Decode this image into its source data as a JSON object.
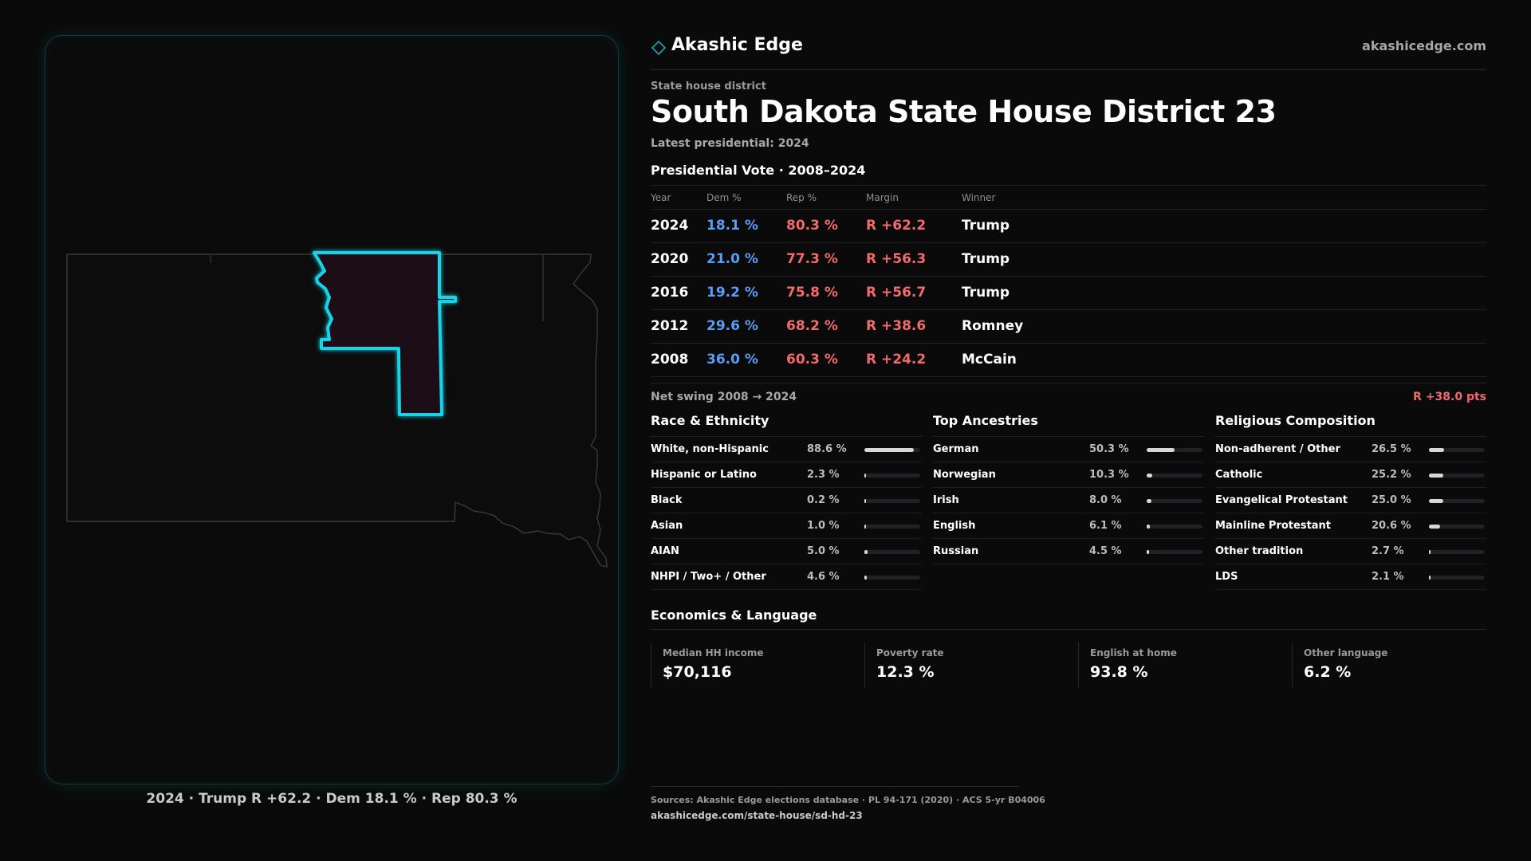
{
  "brand": {
    "name": "Akashic Edge",
    "url": "akashicedge.com"
  },
  "district": {
    "kicker": "State house district",
    "title": "South Dakota State House District 23",
    "subtitle": "Latest presidential: 2024"
  },
  "vote": {
    "heading": "Presidential Vote · 2008–2024",
    "columns": [
      "Year",
      "Dem %",
      "Rep %",
      "Margin",
      "Winner"
    ],
    "rows": [
      {
        "year": "2024",
        "dem": "18.1 %",
        "rep": "80.3 %",
        "margin": "R +62.2",
        "winner": "Trump"
      },
      {
        "year": "2020",
        "dem": "21.0 %",
        "rep": "77.3 %",
        "margin": "R +56.3",
        "winner": "Trump"
      },
      {
        "year": "2016",
        "dem": "19.2 %",
        "rep": "75.8 %",
        "margin": "R +56.7",
        "winner": "Trump"
      },
      {
        "year": "2012",
        "dem": "29.6 %",
        "rep": "68.2 %",
        "margin": "R +38.6",
        "winner": "Romney"
      },
      {
        "year": "2008",
        "dem": "36.0 %",
        "rep": "60.3 %",
        "margin": "R +24.2",
        "winner": "McCain"
      }
    ],
    "swing_label": "Net swing 2008 → 2024",
    "swing_value": "R +38.0 pts"
  },
  "race": {
    "heading": "Race & Ethnicity",
    "rows": [
      {
        "label": "White, non-Hispanic",
        "value": "88.6 %",
        "pct": 88.6
      },
      {
        "label": "Hispanic or Latino",
        "value": "2.3 %",
        "pct": 2.3
      },
      {
        "label": "Black",
        "value": "0.2 %",
        "pct": 0.2
      },
      {
        "label": "Asian",
        "value": "1.0 %",
        "pct": 1.0
      },
      {
        "label": "AIAN",
        "value": "5.0 %",
        "pct": 5.0
      },
      {
        "label": "NHPI / Two+ / Other",
        "value": "4.6 %",
        "pct": 4.6
      }
    ]
  },
  "ancestry": {
    "heading": "Top Ancestries",
    "rows": [
      {
        "label": "German",
        "value": "50.3 %",
        "pct": 50.3
      },
      {
        "label": "Norwegian",
        "value": "10.3 %",
        "pct": 10.3
      },
      {
        "label": "Irish",
        "value": "8.0 %",
        "pct": 8.0
      },
      {
        "label": "English",
        "value": "6.1 %",
        "pct": 6.1
      },
      {
        "label": "Russian",
        "value": "4.5 %",
        "pct": 4.5
      }
    ]
  },
  "religion": {
    "heading": "Religious Composition",
    "rows": [
      {
        "label": "Non-adherent / Other",
        "value": "26.5 %",
        "pct": 26.5
      },
      {
        "label": "Catholic",
        "value": "25.2 %",
        "pct": 25.2
      },
      {
        "label": "Evangelical Protestant",
        "value": "25.0 %",
        "pct": 25.0
      },
      {
        "label": "Mainline Protestant",
        "value": "20.6 %",
        "pct": 20.6
      },
      {
        "label": "Other tradition",
        "value": "2.7 %",
        "pct": 2.7
      },
      {
        "label": "LDS",
        "value": "2.1 %",
        "pct": 2.1
      }
    ]
  },
  "economics": {
    "heading": "Economics & Language",
    "cards": [
      {
        "label": "Median HH income",
        "value": "$70,116"
      },
      {
        "label": "Poverty rate",
        "value": "12.3 %"
      },
      {
        "label": "English at home",
        "value": "93.8 %"
      },
      {
        "label": "Other language",
        "value": "6.2 %"
      }
    ]
  },
  "map": {
    "caption": "2024 · Trump R +62.2 · Dem 18.1 % · Rep 80.3 %",
    "highlight_color": "#19d3e6",
    "fill_color": "#1f1012"
  },
  "sources": {
    "line": "Sources: Akashic Edge elections database · PL 94-171 (2020) · ACS 5-yr B04006",
    "url": "akashicedge.com/state-house/sd-hd-23"
  }
}
